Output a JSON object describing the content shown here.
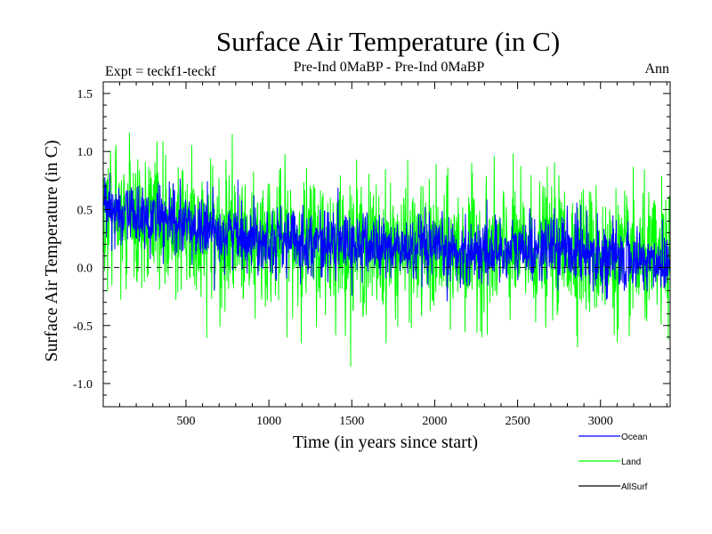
{
  "chart_data": {
    "type": "line",
    "title": "Surface Air Temperature (in C)",
    "subtitle_left": "Expt = teckf1-teckf",
    "subtitle_center": "Pre-Ind 0MaBP - Pre-Ind 0MaBP",
    "subtitle_right": "Ann",
    "xlabel": "Time (in years since start)",
    "ylabel": "Surface Air Temperature (in C)",
    "xlim": [
      1,
      3420
    ],
    "ylim": [
      -1.2,
      1.6
    ],
    "x_ticks": [
      500,
      1000,
      1500,
      2000,
      2500,
      3000
    ],
    "x_tick_labels": [
      "500",
      "1000",
      "1500",
      "2000",
      "2500",
      "3000"
    ],
    "y_ticks": [
      -1.0,
      -0.5,
      0.0,
      0.5,
      1.0,
      1.5
    ],
    "y_tick_labels": [
      "-1.0",
      "-0.5",
      "0.0",
      "0.5",
      "1.0",
      "1.5"
    ],
    "zero_line": true,
    "series": [
      {
        "name": "Land",
        "color": "#00ff00",
        "approximate": true,
        "trend_x": [
          1,
          300,
          600,
          1000,
          1500,
          2000,
          2500,
          2800,
          3100,
          3420
        ],
        "trend_y": [
          0.5,
          0.42,
          0.33,
          0.25,
          0.2,
          0.13,
          0.15,
          0.18,
          0.07,
          0.05
        ],
        "noise_amplitude": 0.28
      },
      {
        "name": "Ocean",
        "color": "#0000ff",
        "approximate": true,
        "trend_x": [
          1,
          300,
          600,
          1000,
          1500,
          2000,
          2500,
          2800,
          3100,
          3420
        ],
        "trend_y": [
          0.5,
          0.42,
          0.33,
          0.25,
          0.2,
          0.13,
          0.15,
          0.18,
          0.07,
          0.05
        ],
        "noise_amplitude": 0.14
      },
      {
        "name": "AllSurf",
        "color": "#000000",
        "approximate": true,
        "trend_x": [],
        "trend_y": [],
        "noise_amplitude": 0
      }
    ],
    "legend_position": "bottom-right",
    "legend": [
      {
        "label": "Ocean",
        "color": "#0000ff"
      },
      {
        "label": "Land",
        "color": "#00ff00"
      },
      {
        "label": "AllSurf",
        "color": "#000000"
      }
    ]
  }
}
